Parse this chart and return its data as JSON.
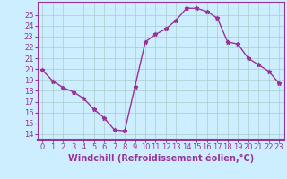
{
  "x": [
    0,
    1,
    2,
    3,
    4,
    5,
    6,
    7,
    8,
    9,
    10,
    11,
    12,
    13,
    14,
    15,
    16,
    17,
    18,
    19,
    20,
    21,
    22,
    23
  ],
  "y": [
    19.9,
    18.9,
    18.3,
    17.9,
    17.3,
    16.3,
    15.5,
    14.4,
    14.3,
    18.4,
    22.5,
    23.2,
    23.7,
    24.5,
    25.6,
    25.6,
    25.3,
    24.7,
    22.5,
    22.3,
    21.0,
    20.4,
    19.8,
    18.7
  ],
  "line_color": "#993399",
  "marker": "*",
  "marker_size": 3.5,
  "xlabel": "Windchill (Refroidissement éolien,°C)",
  "xlabel_fontsize": 7,
  "xlim": [
    -0.5,
    23.5
  ],
  "ylim": [
    13.5,
    26.2
  ],
  "yticks": [
    14,
    15,
    16,
    17,
    18,
    19,
    20,
    21,
    22,
    23,
    24,
    25
  ],
  "xticks": [
    0,
    1,
    2,
    3,
    4,
    5,
    6,
    7,
    8,
    9,
    10,
    11,
    12,
    13,
    14,
    15,
    16,
    17,
    18,
    19,
    20,
    21,
    22,
    23
  ],
  "bg_color": "#cceeff",
  "grid_color": "#aacccc",
  "tick_color": "#993399",
  "tick_fontsize": 6,
  "line_width": 1.0
}
